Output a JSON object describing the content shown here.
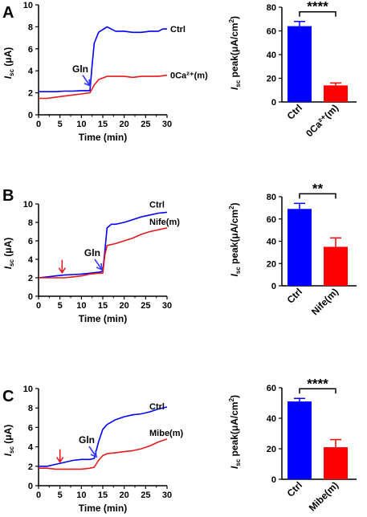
{
  "chart_data": [
    {
      "panel": "A",
      "type": "line",
      "xlabel": "Time (min)",
      "ylabel_main": "I",
      "ylabel_sub": "sc",
      "ylabel_rest": " (μA)",
      "xlim": [
        0,
        30
      ],
      "ylim": [
        0,
        10
      ],
      "xticks": [
        "0",
        "5",
        "10",
        "15",
        "20",
        "25",
        "30"
      ],
      "yticks": [
        "0",
        "2",
        "4",
        "6",
        "8",
        "10"
      ],
      "annotation": "Gln",
      "annotation_arrow": {
        "x": 12,
        "y": 2.5,
        "color": "#3535ff"
      },
      "red_marker": null,
      "series": [
        {
          "name": "Ctrl",
          "color": "#0000ff",
          "points": [
            [
              0,
              2.1
            ],
            [
              2,
              2.1
            ],
            [
              4,
              2.1
            ],
            [
              6,
              2.15
            ],
            [
              8,
              2.15
            ],
            [
              10,
              2.2
            ],
            [
              12,
              2.2
            ],
            [
              12.5,
              4.5
            ],
            [
              13,
              6.5
            ],
            [
              14,
              7.5
            ],
            [
              16,
              8.0
            ],
            [
              18,
              7.6
            ],
            [
              20,
              7.6
            ],
            [
              22,
              7.5
            ],
            [
              24,
              7.5
            ],
            [
              26,
              7.6
            ],
            [
              28,
              7.6
            ],
            [
              29,
              7.8
            ],
            [
              30,
              7.8
            ]
          ]
        },
        {
          "name": "0Ca²⁺(m)",
          "color": "#e41a1c",
          "points": [
            [
              0,
              1.5
            ],
            [
              2,
              1.5
            ],
            [
              4,
              1.6
            ],
            [
              6,
              1.7
            ],
            [
              8,
              1.8
            ],
            [
              10,
              1.9
            ],
            [
              12,
              2.0
            ],
            [
              13,
              2.7
            ],
            [
              14,
              3.2
            ],
            [
              16,
              3.5
            ],
            [
              18,
              3.5
            ],
            [
              20,
              3.5
            ],
            [
              22,
              3.4
            ],
            [
              24,
              3.5
            ],
            [
              26,
              3.5
            ],
            [
              28,
              3.5
            ],
            [
              30,
              3.6
            ]
          ]
        }
      ]
    },
    {
      "panel": "A",
      "type": "bar",
      "ylabel_main": "I",
      "ylabel_sub": "sc",
      "ylabel_rest": " peak(μA/cm",
      "ylabel_sup": "2",
      "ylabel_end": ")",
      "ylim": [
        0,
        80
      ],
      "yticks": [
        "0",
        "20",
        "40",
        "60",
        "80"
      ],
      "categories": [
        "Ctrl",
        "0Ca²⁺(m)"
      ],
      "values": [
        64,
        14
      ],
      "errors": [
        4,
        2
      ],
      "colors": [
        "#0000ff",
        "#ff0000"
      ],
      "significance": "****"
    },
    {
      "panel": "B",
      "type": "line",
      "xlabel": "Time (min)",
      "ylabel_main": "I",
      "ylabel_sub": "sc",
      "ylabel_rest": " (μA)",
      "xlim": [
        0,
        30
      ],
      "ylim": [
        0,
        10
      ],
      "xticks": [
        "0",
        "5",
        "10",
        "15",
        "20",
        "25",
        "30"
      ],
      "yticks": [
        "0",
        "2",
        "4",
        "6",
        "8",
        "10"
      ],
      "annotation": "Gln",
      "annotation_arrow": {
        "x": 14.8,
        "y": 2.7,
        "color": "#3535ff"
      },
      "red_marker": {
        "x": 5.5,
        "y": 2.2,
        "color": "#e41a1c"
      },
      "series": [
        {
          "name": "Ctrl",
          "color": "#0000ff",
          "points": [
            [
              0,
              2.0
            ],
            [
              2,
              2.1
            ],
            [
              4,
              2.2
            ],
            [
              6,
              2.3
            ],
            [
              8,
              2.35
            ],
            [
              10,
              2.4
            ],
            [
              12,
              2.5
            ],
            [
              14,
              2.6
            ],
            [
              15,
              2.7
            ],
            [
              15.5,
              5.0
            ],
            [
              16,
              7.4
            ],
            [
              17,
              7.8
            ],
            [
              18,
              7.8
            ],
            [
              20,
              8.0
            ],
            [
              22,
              8.3
            ],
            [
              24,
              8.6
            ],
            [
              26,
              8.8
            ],
            [
              28,
              9.0
            ],
            [
              30,
              9.1
            ]
          ]
        },
        {
          "name": "Nife(m)",
          "color": "#e41a1c",
          "points": [
            [
              0,
              2.0
            ],
            [
              2,
              2.0
            ],
            [
              4,
              2.0
            ],
            [
              6,
              2.0
            ],
            [
              8,
              2.1
            ],
            [
              10,
              2.2
            ],
            [
              12,
              2.4
            ],
            [
              14,
              2.5
            ],
            [
              15,
              2.5
            ],
            [
              15.5,
              4.5
            ],
            [
              16,
              5.5
            ],
            [
              18,
              5.7
            ],
            [
              20,
              6.0
            ],
            [
              22,
              6.3
            ],
            [
              24,
              6.7
            ],
            [
              26,
              7.0
            ],
            [
              28,
              7.2
            ],
            [
              30,
              7.4
            ]
          ]
        }
      ]
    },
    {
      "panel": "B",
      "type": "bar",
      "ylabel_main": "I",
      "ylabel_sub": "sc",
      "ylabel_rest": " peak(μA/cm",
      "ylabel_sup": "2",
      "ylabel_end": ")",
      "ylim": [
        0,
        80
      ],
      "yticks": [
        "0",
        "20",
        "40",
        "60",
        "80"
      ],
      "categories": [
        "Ctrl",
        "Nife(m)"
      ],
      "values": [
        69,
        35
      ],
      "errors": [
        5,
        8
      ],
      "colors": [
        "#0000ff",
        "#ff0000"
      ],
      "significance": "**"
    },
    {
      "panel": "C",
      "type": "line",
      "xlabel": "Time (min)",
      "ylabel_main": "I",
      "ylabel_sub": "sc",
      "ylabel_rest": " (μA)",
      "xlim": [
        0,
        30
      ],
      "ylim": [
        0,
        10
      ],
      "xticks": [
        "0",
        "5",
        "10",
        "15",
        "20",
        "25",
        "30"
      ],
      "yticks": [
        "0",
        "2",
        "4",
        "6",
        "8",
        "10"
      ],
      "annotation": "Gln",
      "annotation_arrow": {
        "x": 13.5,
        "y": 2.8,
        "color": "#3535ff"
      },
      "red_marker": {
        "x": 5,
        "y": 2.1,
        "color": "#e41a1c"
      },
      "series": [
        {
          "name": "Ctrl",
          "color": "#0000ff",
          "points": [
            [
              0,
              2.0
            ],
            [
              2,
              2.0
            ],
            [
              4,
              2.2
            ],
            [
              6,
              2.4
            ],
            [
              8,
              2.6
            ],
            [
              10,
              2.7
            ],
            [
              12,
              2.7
            ],
            [
              13,
              2.8
            ],
            [
              14,
              4.5
            ],
            [
              15,
              5.8
            ],
            [
              16,
              6.3
            ],
            [
              18,
              6.8
            ],
            [
              20,
              7.1
            ],
            [
              22,
              7.3
            ],
            [
              24,
              7.4
            ],
            [
              26,
              7.6
            ],
            [
              28,
              7.9
            ],
            [
              30,
              8.1
            ]
          ]
        },
        {
          "name": "Mibe(m)",
          "color": "#e41a1c",
          "points": [
            [
              0,
              1.8
            ],
            [
              2,
              1.8
            ],
            [
              4,
              1.7
            ],
            [
              6,
              1.7
            ],
            [
              8,
              1.7
            ],
            [
              10,
              1.7
            ],
            [
              12,
              1.8
            ],
            [
              13,
              1.9
            ],
            [
              14,
              2.6
            ],
            [
              15,
              3.1
            ],
            [
              16,
              3.3
            ],
            [
              18,
              3.4
            ],
            [
              20,
              3.5
            ],
            [
              22,
              3.6
            ],
            [
              24,
              3.8
            ],
            [
              26,
              4.1
            ],
            [
              28,
              4.5
            ],
            [
              30,
              4.8
            ]
          ]
        }
      ]
    },
    {
      "panel": "C",
      "type": "bar",
      "ylabel_main": "I",
      "ylabel_sub": "sc",
      "ylabel_rest": " peak(μA/cm",
      "ylabel_sup": "2",
      "ylabel_end": ")",
      "ylim": [
        0,
        60
      ],
      "yticks": [
        "0",
        "20",
        "40",
        "60"
      ],
      "categories": [
        "Ctrl",
        "Mibe(m)"
      ],
      "values": [
        51,
        21
      ],
      "errors": [
        2,
        5
      ],
      "colors": [
        "#0000ff",
        "#ff0000"
      ],
      "significance": "****"
    }
  ]
}
